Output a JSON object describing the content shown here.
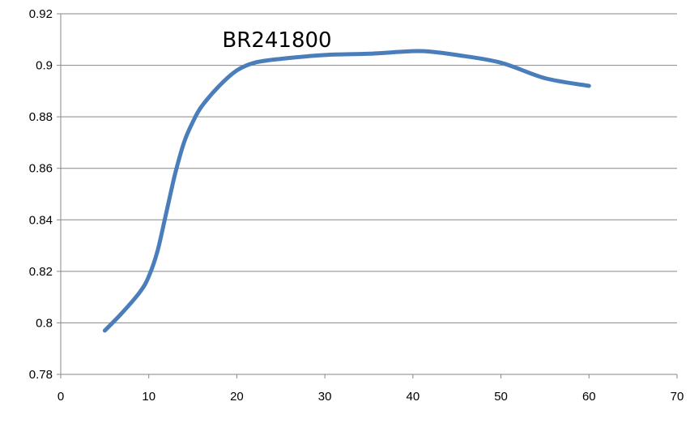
{
  "chart_data": {
    "type": "line",
    "title": "BR241800",
    "xlabel": "",
    "ylabel": "",
    "xlim": [
      0,
      70
    ],
    "ylim": [
      0.78,
      0.92
    ],
    "x_ticks": [
      "0",
      "10",
      "20",
      "30",
      "40",
      "50",
      "60",
      "70"
    ],
    "y_ticks": [
      "0.78",
      "0.8",
      "0.82",
      "0.84",
      "0.86",
      "0.88",
      "0.9",
      "0.92"
    ],
    "grid": "horizontal",
    "legend": "none",
    "series": [
      {
        "color": "#4a7ebb",
        "x": [
          5,
          7,
          9,
          10,
          11,
          12,
          13,
          14,
          15,
          16,
          18,
          20,
          22,
          25,
          30,
          35,
          40,
          42,
          45,
          50,
          55,
          60
        ],
        "y": [
          0.797,
          0.804,
          0.812,
          0.818,
          0.828,
          0.843,
          0.858,
          0.87,
          0.878,
          0.884,
          0.892,
          0.898,
          0.901,
          0.9025,
          0.904,
          0.9045,
          0.9055,
          0.9053,
          0.904,
          0.901,
          0.895,
          0.892
        ]
      }
    ]
  }
}
